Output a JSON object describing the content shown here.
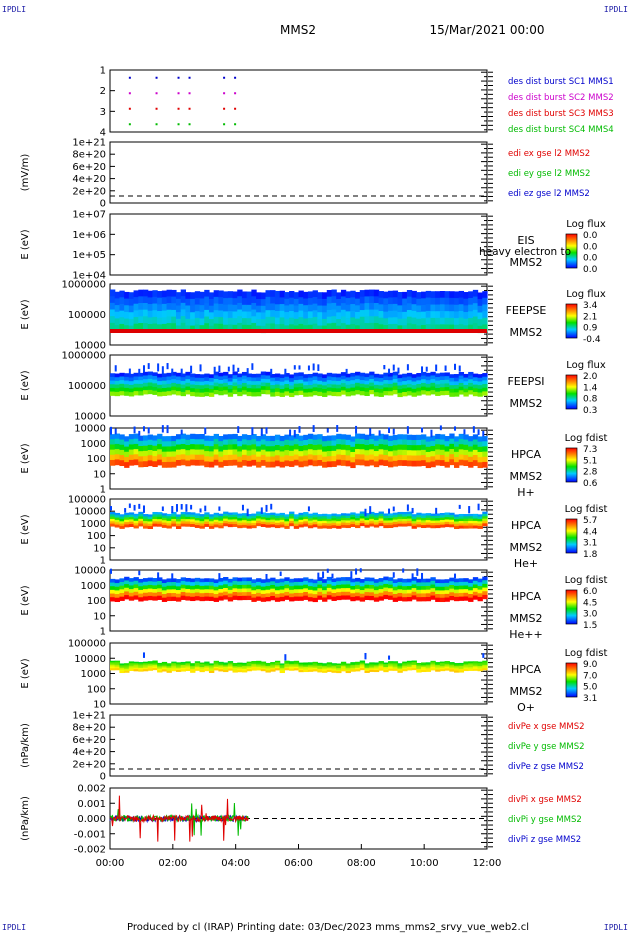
{
  "corner_marks": [
    "IPDLI",
    "IPDLI",
    "IPDLI",
    "IPDLI"
  ],
  "header": {
    "spacecraft": "MMS2",
    "datetime": "15/Mar/2021 00:00"
  },
  "footer": "Produced by cl (IRAP)   Printing date: 03/Dec/2023   mms_mms2_srvy_vue_web2.cl",
  "chart_data": [
    {
      "type": "scatter",
      "name": "des_dist_burst",
      "ylim": [
        0.5,
        4.5
      ],
      "yticks": [
        "1",
        "2",
        "3",
        "4"
      ],
      "legend": [
        {
          "label": "des dist burst SC1 MMS1",
          "color": "#0000cc"
        },
        {
          "label": "des dist burst SC2 MMS2",
          "color": "#cc00cc"
        },
        {
          "label": "des dist burst SC3 MMS3",
          "color": "#e00000"
        },
        {
          "label": "des dist burst SC4 MMS4",
          "color": "#00bb00"
        }
      ],
      "x_hours": [
        0.6,
        1.45,
        2.15,
        2.5,
        3.6,
        3.95
      ],
      "colors": [
        "#0000cc",
        "#cc00cc",
        "#e00000",
        "#00bb00"
      ]
    },
    {
      "type": "line",
      "name": "edi_e",
      "ylabel": "(mV/m)",
      "yticks": [
        "1e+21",
        "8e+20",
        "6e+20",
        "4e+20",
        "2e+20",
        "0"
      ],
      "legend": [
        {
          "label": "edi ex gse l2 MMS2",
          "color": "#e00000"
        },
        {
          "label": "edi ey gse l2 MMS2",
          "color": "#00bb00"
        },
        {
          "label": "edi ez gse l2 MMS2",
          "color": "#0000cc"
        }
      ]
    },
    {
      "type": "heatmap",
      "name": "eis",
      "ylabel": "E (eV)",
      "yticks": [
        "1e+07",
        "1e+06",
        "1e+05",
        "1e+04"
      ],
      "labels": [
        "EIS",
        "MMS2"
      ],
      "overlay": "heavy electron to",
      "colorbar": {
        "title": "Log flux",
        "ticks": [
          "0.0",
          "0.0",
          "0.0",
          "0.0"
        ]
      }
    },
    {
      "type": "heatmap",
      "name": "feeps_e",
      "ylabel": "E (eV)",
      "yticks": [
        "1000000",
        "100000",
        "10000"
      ],
      "labels": [
        "FEEPSE",
        "MMS2"
      ],
      "colorbar": {
        "title": "Log flux",
        "ticks": [
          "3.4",
          "2.1",
          "0.9",
          "-0.4"
        ]
      }
    },
    {
      "type": "heatmap",
      "name": "feeps_i",
      "ylabel": "E (eV)",
      "yticks": [
        "1000000",
        "100000",
        "10000"
      ],
      "labels": [
        "FEEPSI",
        "MMS2"
      ],
      "colorbar": {
        "title": "Log flux",
        "ticks": [
          "2.0",
          "1.4",
          "0.8",
          "0.3"
        ]
      }
    },
    {
      "type": "heatmap",
      "name": "hpca_h",
      "ylabel": "E (eV)",
      "yticks": [
        "10000",
        "1000",
        "100",
        "10",
        "1"
      ],
      "labels": [
        "HPCA",
        "MMS2",
        "H+"
      ],
      "colorbar": {
        "title": "Log fdist",
        "ticks": [
          "7.3",
          "5.1",
          "2.8",
          "0.6"
        ]
      }
    },
    {
      "type": "heatmap",
      "name": "hpca_he",
      "ylabel": "E (eV)",
      "yticks": [
        "100000",
        "10000",
        "1000",
        "100",
        "10",
        "1"
      ],
      "labels": [
        "HPCA",
        "MMS2",
        "He+"
      ],
      "colorbar": {
        "title": "Log fdist",
        "ticks": [
          "5.7",
          "4.4",
          "3.1",
          "1.8"
        ]
      }
    },
    {
      "type": "heatmap",
      "name": "hpca_hepp",
      "ylabel": "E (eV)",
      "yticks": [
        "10000",
        "1000",
        "100",
        "10",
        "1"
      ],
      "labels": [
        "HPCA",
        "MMS2",
        "He++"
      ],
      "colorbar": {
        "title": "Log fdist",
        "ticks": [
          "6.0",
          "4.5",
          "3.0",
          "1.5"
        ]
      }
    },
    {
      "type": "heatmap",
      "name": "hpca_o",
      "ylabel": "E (eV)",
      "yticks": [
        "100000",
        "10000",
        "1000",
        "100",
        "10"
      ],
      "labels": [
        "HPCA",
        "MMS2",
        "O+"
      ],
      "colorbar": {
        "title": "Log fdist",
        "ticks": [
          "9.0",
          "7.0",
          "5.0",
          "3.1"
        ]
      }
    },
    {
      "type": "line",
      "name": "divpe",
      "ylabel": "(nPa/km)",
      "yticks": [
        "1e+21",
        "8e+20",
        "6e+20",
        "4e+20",
        "2e+20",
        "0"
      ],
      "legend": [
        {
          "label": "divPe x gse MMS2",
          "color": "#e00000"
        },
        {
          "label": "divPe y gse MMS2",
          "color": "#00bb00"
        },
        {
          "label": "divPe z gse MMS2",
          "color": "#0000cc"
        }
      ]
    },
    {
      "type": "line",
      "name": "divpi",
      "ylabel": "(nPa/km)",
      "ylim": [
        -0.003,
        0.003
      ],
      "yticks": [
        "0.002",
        "0.001",
        "0.000",
        "-0.001",
        "-0.002"
      ],
      "data_range_hours": [
        0,
        4.4
      ],
      "legend": [
        {
          "label": "divPi x gse MMS2",
          "color": "#e00000"
        },
        {
          "label": "divPi y gse MMS2",
          "color": "#00bb00"
        },
        {
          "label": "divPi z gse MMS2",
          "color": "#0000cc"
        }
      ]
    }
  ],
  "x_axis": {
    "range_hours": [
      0,
      12
    ],
    "ticks": [
      "00:00",
      "02:00",
      "04:00",
      "06:00",
      "08:00",
      "10:00",
      "12:00"
    ]
  }
}
